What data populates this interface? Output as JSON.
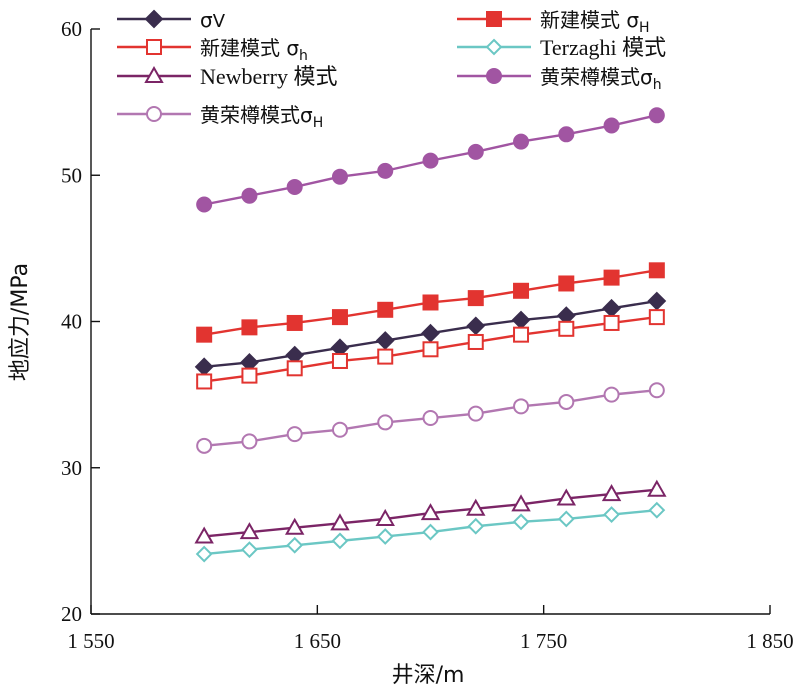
{
  "chart_data": {
    "type": "line",
    "xlabel": "井深/m",
    "ylabel": "地应力/MPa",
    "xlim": [
      1550,
      1850
    ],
    "ylim": [
      20,
      60
    ],
    "xticks": [
      1550,
      1650,
      1750,
      1850
    ],
    "xtick_labels": [
      "1 550",
      "1 650",
      "1 750",
      "1 850"
    ],
    "yticks": [
      20,
      30,
      40,
      50,
      60
    ],
    "ytick_labels": [
      "20",
      "30",
      "40",
      "50",
      "60"
    ],
    "x": [
      1600,
      1620,
      1640,
      1660,
      1680,
      1700,
      1720,
      1740,
      1760,
      1780,
      1800
    ],
    "grid": false,
    "legend_position": "top",
    "series": [
      {
        "name": "σV",
        "label_main": "σ",
        "label_sub": "V",
        "label_sub_style": "normal",
        "color": "#3a2d4d",
        "marker": "diamond-filled",
        "values": [
          36.9,
          37.2,
          37.7,
          38.2,
          38.7,
          39.2,
          39.7,
          40.1,
          40.4,
          40.9,
          41.4
        ]
      },
      {
        "name": "新建模式 σH",
        "label_main": "新建模式 σ",
        "label_sub": "H",
        "label_sub_style": "sub",
        "color": "#e23430",
        "marker": "square-filled",
        "values": [
          39.1,
          39.6,
          39.9,
          40.3,
          40.8,
          41.3,
          41.6,
          42.1,
          42.6,
          43.0,
          43.5
        ]
      },
      {
        "name": "新建模式 σh",
        "label_main": "新建模式 σ",
        "label_sub": "h",
        "label_sub_style": "sub",
        "color": "#e23430",
        "marker": "square-open",
        "values": [
          35.9,
          36.3,
          36.8,
          37.3,
          37.6,
          38.1,
          38.6,
          39.1,
          39.5,
          39.9,
          40.3
        ]
      },
      {
        "name": "Terzaghi 模式",
        "label_main": "Terzaghi 模式",
        "label_sub": "",
        "label_sub_style": "none",
        "color": "#6bc7c4",
        "marker": "diamond-open",
        "values": [
          24.1,
          24.4,
          24.7,
          25.0,
          25.3,
          25.6,
          26.0,
          26.3,
          26.5,
          26.8,
          27.1
        ]
      },
      {
        "name": "Newberry 模式",
        "label_main": "Newberry 模式",
        "label_sub": "",
        "label_sub_style": "none",
        "color": "#7b2566",
        "marker": "triangle-open",
        "values": [
          25.3,
          25.6,
          25.9,
          26.2,
          26.5,
          26.9,
          27.2,
          27.5,
          27.9,
          28.2,
          28.5
        ]
      },
      {
        "name": "黄荣樽模式σh",
        "label_main": "黄荣樽模式σ",
        "label_sub": "h",
        "label_sub_style": "sub",
        "color": "#a155a2",
        "marker": "circle-filled",
        "values": [
          48.0,
          48.6,
          49.2,
          49.9,
          50.3,
          51.0,
          51.6,
          52.3,
          52.8,
          53.4,
          54.1
        ]
      },
      {
        "name": "黄荣樽模式σH",
        "label_main": "黄荣樽模式σ",
        "label_sub": "H",
        "label_sub_style": "sub",
        "color": "#b277b1",
        "marker": "circle-open",
        "values": [
          31.5,
          31.8,
          32.3,
          32.6,
          33.1,
          33.4,
          33.7,
          34.2,
          34.5,
          35.0,
          35.3
        ]
      }
    ]
  }
}
